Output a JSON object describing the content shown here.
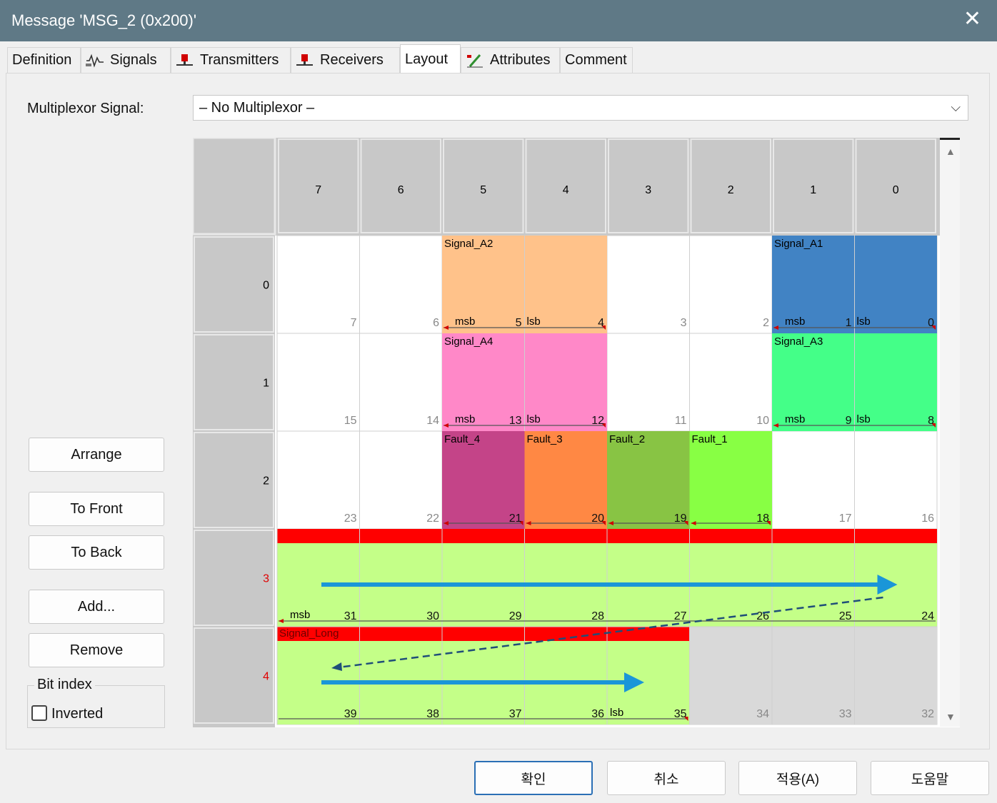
{
  "window": {
    "title": "Message 'MSG_2 (0x200)'",
    "close_glyph": "✕"
  },
  "tabs": [
    {
      "label": "Definition",
      "icon": ""
    },
    {
      "label": "Signals",
      "icon": "signal-wave-icon"
    },
    {
      "label": "Transmitters",
      "icon": "ecu-node-icon"
    },
    {
      "label": "Receivers",
      "icon": "ecu-node-icon"
    },
    {
      "label": "Layout",
      "icon": "",
      "active": true
    },
    {
      "label": "Attributes",
      "icon": "pencil-icon"
    },
    {
      "label": "Comment",
      "icon": ""
    }
  ],
  "multiplexor": {
    "label": "Multiplexor Signal:",
    "value": "– No Multiplexor –",
    "arrow_glyph": "⌵"
  },
  "buttons": {
    "arrange": "Arrange",
    "to_front": "To Front",
    "to_back": "To Back",
    "add": "Add...",
    "remove": "Remove"
  },
  "bit_index": {
    "group_label": "Bit index",
    "inverted_label": "Inverted",
    "inverted_checked": false
  },
  "scroll": {
    "up_glyph": "▲",
    "down_glyph": "▼"
  },
  "grid": {
    "column_headers": [
      "7",
      "6",
      "5",
      "4",
      "3",
      "2",
      "1",
      "0"
    ],
    "row_headers": [
      {
        "label": "0",
        "color": "#000000"
      },
      {
        "label": "1",
        "color": "#000000"
      },
      {
        "label": "2",
        "color": "#000000"
      },
      {
        "label": "3",
        "color": "#e00000"
      },
      {
        "label": "4",
        "color": "#e00000"
      }
    ],
    "bit_labels": [
      [
        "7",
        "6",
        "5",
        "4",
        "3",
        "2",
        "1",
        "0"
      ],
      [
        "15",
        "14",
        "13",
        "12",
        "11",
        "10",
        "9",
        "8"
      ],
      [
        "23",
        "22",
        "21",
        "20",
        "19",
        "18",
        "17",
        "16"
      ],
      [
        "31",
        "30",
        "29",
        "28",
        "27",
        "26",
        "25",
        "24"
      ],
      [
        "39",
        "38",
        "37",
        "36",
        "35",
        "34",
        "33",
        "32"
      ]
    ],
    "signals": [
      {
        "name": "Signal_A2",
        "color": "#ffc28a",
        "byte": 0,
        "start_col": 2,
        "span": 2,
        "msb": "msb",
        "lsb": "lsb"
      },
      {
        "name": "Signal_A1",
        "color": "#4183c4",
        "byte": 0,
        "start_col": 6,
        "span": 2,
        "msb": "msb",
        "lsb": "lsb"
      },
      {
        "name": "Signal_A4",
        "color": "#ff88c8",
        "byte": 1,
        "start_col": 2,
        "span": 2,
        "msb": "msb",
        "lsb": "lsb"
      },
      {
        "name": "Signal_A3",
        "color": "#44ff88",
        "byte": 1,
        "start_col": 6,
        "span": 2,
        "msb": "msb",
        "lsb": "lsb"
      },
      {
        "name": "Fault_4",
        "color": "#c44488",
        "byte": 2,
        "start_col": 2,
        "span": 1,
        "msb": "",
        "lsb": ""
      },
      {
        "name": "Fault_3",
        "color": "#ff8844",
        "byte": 2,
        "start_col": 3,
        "span": 1,
        "msb": "",
        "lsb": ""
      },
      {
        "name": "Fault_2",
        "color": "#88c444",
        "byte": 2,
        "start_col": 4,
        "span": 1,
        "msb": "",
        "lsb": ""
      },
      {
        "name": "Fault_1",
        "color": "#88ff44",
        "byte": 2,
        "start_col": 5,
        "span": 1,
        "msb": "",
        "lsb": ""
      }
    ],
    "long_signal": {
      "name": "Signal_Long",
      "color": "#c4ff88",
      "header_color": "#ff0000",
      "msb": "msb",
      "lsb": "lsb"
    },
    "annotation_color": "#1a96d8",
    "dashed_color": "#1f4e79"
  },
  "footer": {
    "ok": "확인",
    "cancel": "취소",
    "apply": "적용(A)",
    "help": "도움말"
  }
}
